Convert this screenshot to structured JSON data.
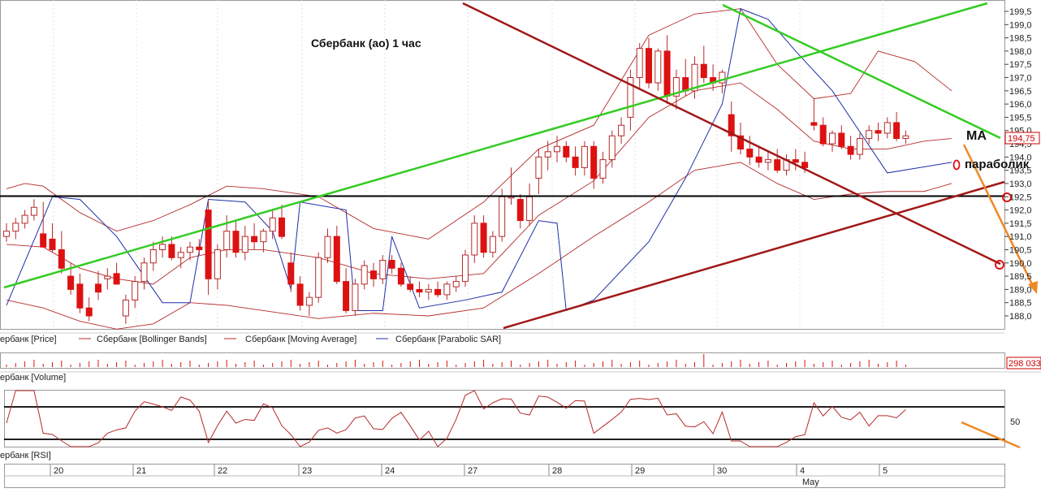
{
  "title": "Сбербанк (ао)   1 час",
  "annotations": {
    "ma": "MA",
    "parabolic": "параболик"
  },
  "price_axis": {
    "ticks": [
      "199,5",
      "199,0",
      "198,5",
      "198,0",
      "197,5",
      "197,0",
      "196,5",
      "196,0",
      "195,5",
      "195,0",
      "194,5",
      "194,0",
      "193,5",
      "193,0",
      "192,5",
      "192,0",
      "191,5",
      "191,0",
      "190,5",
      "190,0",
      "189,5",
      "189,0",
      "188,5",
      "188,0"
    ],
    "current": "194,75"
  },
  "legend": [
    {
      "label": "ербанк [Price]",
      "color": "#b52a2a"
    },
    {
      "label": "Сбербанк [Bollinger Bands]",
      "color": "#b52a2a"
    },
    {
      "label": "Сбербанк [Moving Average]",
      "color": "#b52a2a"
    },
    {
      "label": "Сбербанк [Parabolic SAR]",
      "color": "#1c2fa8"
    }
  ],
  "volume": {
    "label": "ербанк [Volume]",
    "value": "298 033"
  },
  "rsi": {
    "label": "ербанк [RSI]",
    "level": "50"
  },
  "dates": [
    "20",
    "21",
    "22",
    "23",
    "24",
    "27",
    "28",
    "29",
    "30",
    "4",
    "5"
  ],
  "month": "May",
  "colors": {
    "bear": "#dd1111",
    "bull": "#ffffff",
    "wick": "#b52a2a",
    "band": "#b52a2a",
    "sar": "#1c2fa8",
    "green_line": "#33cc22",
    "red_line": "#a11818",
    "forecast": "#ee8822",
    "level_line": "#000000"
  },
  "chart_data": {
    "type": "candlestick",
    "title": "Сбербанк (ао)   1 час",
    "ylim": [
      187.5,
      199.8
    ],
    "xlabel": "",
    "ylabel": "",
    "x": [
      "20",
      "21",
      "22",
      "23",
      "24",
      "27",
      "28",
      "29",
      "30",
      "4",
      "5"
    ],
    "series": [
      {
        "name": "Сбербанк [Price]",
        "candles": [
          [
            191.0,
            191.5,
            190.8,
            191.2
          ],
          [
            191.2,
            191.7,
            190.9,
            191.5
          ],
          [
            191.5,
            192.0,
            191.3,
            191.8
          ],
          [
            191.8,
            192.4,
            191.6,
            192.1
          ],
          [
            191.1,
            192.3,
            190.6,
            190.6
          ],
          [
            190.9,
            191.5,
            190.4,
            190.5
          ],
          [
            190.5,
            191.2,
            189.6,
            189.8
          ],
          [
            189.5,
            190.0,
            188.8,
            189.0
          ],
          [
            189.2,
            189.6,
            188.1,
            188.3
          ],
          [
            188.3,
            188.7,
            187.8,
            188.0
          ],
          [
            189.2,
            189.7,
            188.6,
            188.9
          ],
          [
            189.4,
            189.8,
            189.0,
            189.5
          ],
          [
            189.6,
            190.0,
            189.2,
            189.2
          ],
          [
            188.0,
            188.8,
            187.7,
            188.6
          ],
          [
            188.6,
            189.5,
            188.3,
            189.3
          ],
          [
            189.3,
            190.2,
            189.0,
            190.0
          ],
          [
            190.0,
            190.8,
            189.7,
            190.5
          ],
          [
            190.5,
            191.0,
            190.2,
            190.7
          ],
          [
            190.7,
            191.0,
            190.1,
            190.2
          ],
          [
            190.2,
            190.6,
            189.8,
            190.4
          ],
          [
            190.4,
            190.8,
            190.1,
            190.6
          ],
          [
            190.6,
            190.9,
            190.3,
            190.5
          ],
          [
            192.0,
            192.4,
            188.8,
            189.4
          ],
          [
            189.4,
            190.7,
            189.0,
            190.5
          ],
          [
            190.5,
            191.8,
            190.2,
            191.2
          ],
          [
            191.2,
            191.6,
            190.2,
            190.4
          ],
          [
            190.4,
            191.4,
            190.1,
            191.0
          ],
          [
            191.0,
            191.5,
            190.5,
            190.8
          ],
          [
            190.8,
            191.3,
            190.4,
            191.2
          ],
          [
            191.2,
            192.0,
            190.9,
            191.7
          ],
          [
            191.7,
            192.2,
            190.9,
            191.0
          ],
          [
            190.0,
            190.4,
            188.9,
            189.2
          ],
          [
            189.2,
            189.5,
            188.2,
            188.4
          ],
          [
            188.4,
            188.9,
            188.0,
            188.7
          ],
          [
            188.7,
            190.4,
            188.5,
            190.2
          ],
          [
            190.2,
            191.3,
            190.0,
            191.0
          ],
          [
            191.0,
            191.4,
            189.2,
            189.3
          ],
          [
            189.3,
            189.8,
            188.1,
            188.2
          ],
          [
            188.2,
            189.4,
            188.0,
            189.2
          ],
          [
            189.2,
            190.1,
            189.0,
            189.9
          ],
          [
            189.7,
            190.0,
            189.1,
            189.4
          ],
          [
            189.4,
            190.3,
            189.2,
            190.1
          ],
          [
            190.1,
            190.3,
            189.6,
            189.8
          ],
          [
            189.8,
            190.0,
            189.1,
            189.2
          ],
          [
            189.2,
            189.5,
            188.9,
            189.0
          ],
          [
            189.0,
            189.3,
            188.7,
            188.9
          ],
          [
            188.9,
            189.2,
            188.6,
            189.0
          ],
          [
            189.0,
            189.3,
            188.7,
            188.8
          ],
          [
            188.8,
            189.3,
            188.6,
            189.2
          ],
          [
            189.1,
            189.5,
            188.9,
            189.3
          ],
          [
            189.3,
            190.5,
            189.1,
            190.3
          ],
          [
            190.3,
            191.8,
            190.0,
            191.5
          ],
          [
            191.5,
            191.8,
            190.2,
            190.4
          ],
          [
            190.4,
            191.2,
            190.2,
            191.0
          ],
          [
            191.0,
            192.8,
            190.8,
            192.5
          ],
          [
            192.5,
            193.6,
            192.2,
            192.5
          ],
          [
            192.4,
            192.6,
            191.3,
            191.6
          ],
          [
            191.6,
            193.0,
            191.4,
            192.5
          ],
          [
            193.2,
            194.3,
            192.6,
            194.0
          ],
          [
            194.0,
            194.6,
            193.5,
            194.2
          ],
          [
            194.2,
            194.8,
            193.8,
            194.4
          ],
          [
            194.4,
            194.6,
            193.8,
            194.0
          ],
          [
            194.0,
            194.4,
            193.3,
            193.6
          ],
          [
            193.6,
            194.6,
            193.3,
            194.4
          ],
          [
            194.4,
            194.6,
            192.8,
            193.2
          ],
          [
            193.2,
            194.2,
            193.0,
            193.9
          ],
          [
            193.9,
            195.0,
            193.6,
            194.8
          ],
          [
            194.8,
            195.5,
            194.5,
            195.2
          ],
          [
            195.5,
            197.3,
            195.0,
            197.0
          ],
          [
            197.0,
            198.3,
            196.6,
            198.1
          ],
          [
            198.1,
            198.5,
            196.6,
            196.8
          ],
          [
            196.8,
            198.1,
            196.5,
            198.0
          ],
          [
            198.0,
            198.6,
            196.0,
            196.3
          ],
          [
            196.3,
            197.3,
            195.8,
            197.0
          ],
          [
            197.0,
            197.7,
            196.3,
            196.5
          ],
          [
            196.5,
            197.8,
            196.2,
            197.5
          ],
          [
            197.5,
            198.2,
            196.8,
            197.0
          ],
          [
            197.0,
            197.5,
            196.5,
            196.8
          ],
          [
            196.8,
            197.3,
            196.4,
            197.2
          ],
          [
            195.6,
            196.1,
            194.2,
            194.8
          ],
          [
            194.8,
            195.3,
            194.1,
            194.3
          ],
          [
            194.3,
            194.8,
            193.7,
            194.0
          ],
          [
            194.0,
            194.4,
            193.6,
            193.8
          ],
          [
            193.8,
            194.2,
            193.5,
            193.9
          ],
          [
            193.9,
            194.3,
            193.4,
            193.5
          ],
          [
            193.5,
            194.1,
            193.3,
            193.9
          ],
          [
            193.9,
            194.3,
            193.5,
            193.8
          ],
          [
            193.8,
            194.2,
            193.4,
            193.6
          ],
          [
            195.3,
            196.2,
            195.0,
            195.2
          ],
          [
            195.2,
            195.5,
            194.4,
            194.5
          ],
          [
            194.5,
            195.0,
            194.2,
            194.9
          ],
          [
            194.9,
            195.2,
            194.3,
            194.4
          ],
          [
            194.4,
            194.8,
            193.9,
            194.1
          ],
          [
            194.1,
            194.9,
            193.9,
            194.7
          ],
          [
            194.7,
            195.2,
            194.5,
            195.0
          ],
          [
            195.0,
            195.3,
            194.6,
            194.9
          ],
          [
            194.9,
            195.5,
            194.7,
            195.3
          ],
          [
            195.3,
            195.7,
            194.6,
            194.7
          ],
          [
            194.7,
            195.0,
            194.5,
            194.8
          ]
        ]
      },
      {
        "name": "Сбербанк [Bollinger Bands]",
        "upper": [
          [
            0,
            192.8
          ],
          [
            2,
            193.0
          ],
          [
            4,
            192.9
          ],
          [
            8,
            191.9
          ],
          [
            12,
            191.2
          ],
          [
            16,
            191.6
          ],
          [
            20,
            192.2
          ],
          [
            24,
            192.9
          ],
          [
            28,
            192.8
          ],
          [
            34,
            192.5
          ],
          [
            40,
            191.3
          ],
          [
            46,
            190.9
          ],
          [
            52,
            192.3
          ],
          [
            58,
            194.3
          ],
          [
            64,
            195.2
          ],
          [
            70,
            198.6
          ],
          [
            75,
            199.4
          ],
          [
            80,
            199.6
          ],
          [
            84,
            197.5
          ],
          [
            88,
            196.2
          ],
          [
            92,
            196.4
          ],
          [
            95,
            198.0
          ],
          [
            99,
            197.6
          ],
          [
            103,
            196.5
          ]
        ],
        "lower": [
          [
            0,
            188.6
          ],
          [
            4,
            188.3
          ],
          [
            8,
            187.8
          ],
          [
            12,
            187.5
          ],
          [
            16,
            187.7
          ],
          [
            20,
            188.5
          ],
          [
            24,
            188.4
          ],
          [
            28,
            188.2
          ],
          [
            34,
            187.9
          ],
          [
            40,
            188.1
          ],
          [
            46,
            188.0
          ],
          [
            52,
            188.3
          ],
          [
            58,
            189.6
          ],
          [
            64,
            191.0
          ],
          [
            70,
            192.3
          ],
          [
            75,
            193.5
          ],
          [
            80,
            193.8
          ],
          [
            84,
            193.0
          ],
          [
            88,
            192.4
          ],
          [
            92,
            192.6
          ],
          [
            96,
            192.7
          ],
          [
            100,
            192.7
          ],
          [
            103,
            193.0
          ]
        ]
      },
      {
        "name": "Сбербанк [Moving Average]",
        "points": [
          [
            0,
            190.7
          ],
          [
            4,
            190.6
          ],
          [
            8,
            189.8
          ],
          [
            12,
            189.4
          ],
          [
            16,
            189.2
          ],
          [
            20,
            190.2
          ],
          [
            24,
            190.5
          ],
          [
            28,
            190.5
          ],
          [
            34,
            190.2
          ],
          [
            40,
            189.6
          ],
          [
            46,
            189.4
          ],
          [
            52,
            189.6
          ],
          [
            58,
            191.8
          ],
          [
            64,
            193.1
          ],
          [
            70,
            195.5
          ],
          [
            75,
            196.5
          ],
          [
            80,
            196.8
          ],
          [
            84,
            195.8
          ],
          [
            88,
            194.6
          ],
          [
            92,
            194.3
          ],
          [
            96,
            194.3
          ],
          [
            100,
            194.6
          ],
          [
            103,
            194.7
          ]
        ]
      },
      {
        "name": "Сбербанк [Parabolic SAR]",
        "points": [
          [
            0,
            188.4
          ],
          [
            5,
            192.5
          ],
          [
            8,
            192.4
          ],
          [
            12,
            191.0
          ],
          [
            17,
            188.5
          ],
          [
            20,
            188.5
          ],
          [
            22,
            192.4
          ],
          [
            26,
            192.3
          ],
          [
            29,
            191.2
          ],
          [
            31,
            189.0
          ],
          [
            32,
            192.3
          ],
          [
            37,
            192.0
          ],
          [
            38,
            188.2
          ],
          [
            41,
            188.2
          ],
          [
            42,
            191.0
          ],
          [
            45,
            188.3
          ],
          [
            50,
            188.6
          ],
          [
            54,
            188.9
          ],
          [
            58,
            191.6
          ],
          [
            60,
            191.5
          ],
          [
            61,
            188.2
          ],
          [
            64,
            188.6
          ],
          [
            70,
            190.8
          ],
          [
            74,
            193.2
          ],
          [
            78,
            196.0
          ],
          [
            80,
            199.6
          ],
          [
            83,
            199.2
          ],
          [
            86,
            198.0
          ],
          [
            90,
            196.5
          ],
          [
            96,
            193.4
          ],
          [
            103,
            193.8
          ]
        ]
      }
    ],
    "horizontal_levels": [
      192.5
    ],
    "rsi_levels": [
      70,
      30
    ]
  }
}
